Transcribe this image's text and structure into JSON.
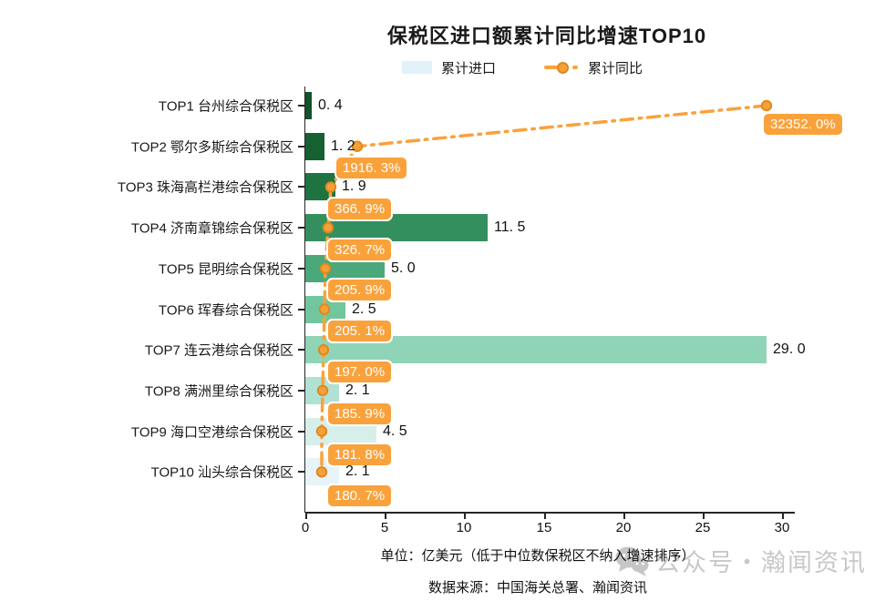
{
  "title": "保税区进口额累计同比增速TOP10",
  "legend": {
    "bar_label": "累计进口",
    "line_label": "累计同比"
  },
  "rows": [
    {
      "category": "TOP1 台州综合保税区",
      "value_label": "0. 4",
      "pct_label": "32352. 0%"
    },
    {
      "category": "TOP2 鄂尔多斯综合保税区",
      "value_label": "1. 2",
      "pct_label": "1916. 3%"
    },
    {
      "category": "TOP3 珠海高栏港综合保税区",
      "value_label": "1. 9",
      "pct_label": "366. 9%"
    },
    {
      "category": "TOP4 济南章锦综合保税区",
      "value_label": "11. 5",
      "pct_label": "326. 7%"
    },
    {
      "category": "TOP5 昆明综合保税区",
      "value_label": "5. 0",
      "pct_label": "205. 9%"
    },
    {
      "category": "TOP6 珲春综合保税区",
      "value_label": "2. 5",
      "pct_label": "205. 1%"
    },
    {
      "category": "TOP7 连云港综合保税区",
      "value_label": "29. 0",
      "pct_label": "197. 0%"
    },
    {
      "category": "TOP8 满洲里综合保税区",
      "value_label": "2. 1",
      "pct_label": "185. 9%"
    },
    {
      "category": "TOP9 海口空港综合保税区",
      "value_label": "4. 5",
      "pct_label": "181. 8%"
    },
    {
      "category": "TOP10 汕头综合保税区",
      "value_label": "2. 1",
      "pct_label": "180. 7%"
    }
  ],
  "x_axis": {
    "tick_labels": [
      "0",
      "5",
      "10",
      "15",
      "20",
      "25",
      "30"
    ]
  },
  "footnotes": {
    "unit": "单位：亿美元（低于中位数保税区不纳入增速排序）",
    "source": "数据来源：中国海关总署、瀚闻资讯"
  },
  "watermark": "公众号・瀚闻资讯",
  "colors": {
    "line": "#f9a23c",
    "dot_fill": "#f7a03a",
    "dot_ring": "#dd8a1e",
    "badge_bg": "#f9a23c",
    "legend_swatch": "#e3f1f8",
    "watermark_gray": "#c8c8c8",
    "bars": [
      "#14532d",
      "#166032",
      "#1e7340",
      "#348f5e",
      "#4ba87a",
      "#72c69e",
      "#90d4b8",
      "#b1e1d3",
      "#d7efeb",
      "#e7f4fa"
    ]
  },
  "chart_data": {
    "type": "bar",
    "orientation": "horizontal",
    "title": "保税区进口额累计同比增速TOP10",
    "categories": [
      "TOP1 台州综合保税区",
      "TOP2 鄂尔多斯综合保税区",
      "TOP3 珠海高栏港综合保税区",
      "TOP4 济南章锦综合保税区",
      "TOP5 昆明综合保税区",
      "TOP6 珲春综合保税区",
      "TOP7 连云港综合保税区",
      "TOP8 满洲里综合保税区",
      "TOP9 海口空港综合保税区",
      "TOP10 汕头综合保税区"
    ],
    "series": [
      {
        "name": "累计进口",
        "type": "bar",
        "unit": "亿美元",
        "values": [
          0.4,
          1.2,
          1.9,
          11.5,
          5.0,
          2.5,
          29.0,
          2.1,
          4.5,
          2.1
        ]
      },
      {
        "name": "累计同比",
        "type": "line",
        "unit": "%",
        "values": [
          32352.0,
          1916.3,
          366.9,
          326.7,
          205.9,
          205.1,
          197.0,
          185.9,
          181.8,
          180.7
        ]
      }
    ],
    "xlim": [
      0,
      30
    ],
    "x_ticks": [
      0,
      5,
      10,
      15,
      20,
      25,
      30
    ],
    "grid": false,
    "legend_position": "top",
    "note": "单位：亿美元（低于中位数保税区不纳入增速排序）",
    "source": "数据来源：中国海关总署、瀚闻资讯"
  }
}
